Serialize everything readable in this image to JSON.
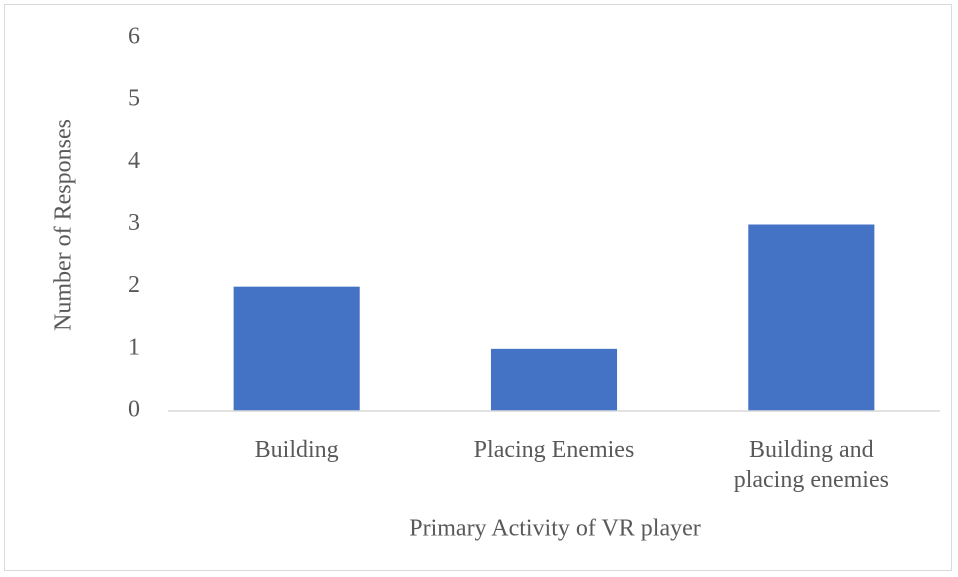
{
  "chart_data": {
    "type": "bar",
    "categories": [
      "Building",
      "Placing Enemies",
      "Building and placing enemies"
    ],
    "values": [
      2,
      1,
      3
    ],
    "color": "#4472c4",
    "ylim": [
      0,
      6
    ],
    "yticks": [
      0,
      1,
      2,
      3,
      4,
      5,
      6
    ],
    "grid": false,
    "ylabel": "Number of Responses",
    "xlabel": "Primary Activity  of VR player"
  }
}
